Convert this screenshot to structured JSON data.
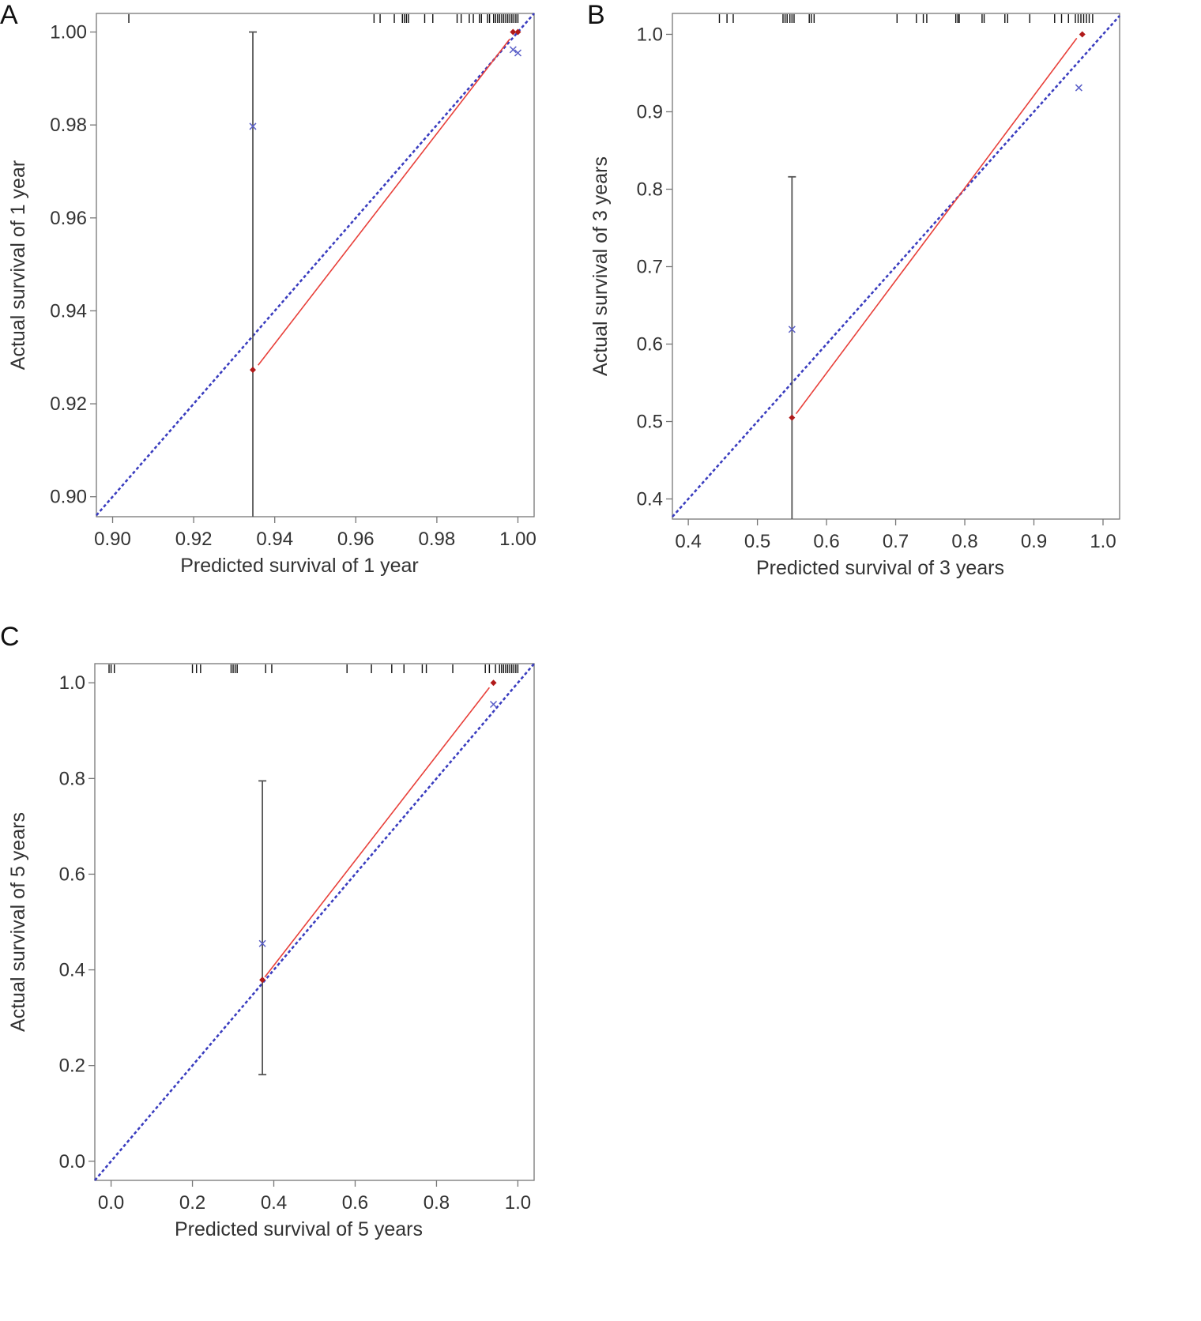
{
  "chart_data": [
    {
      "panel": "A",
      "type": "scatter",
      "xlabel": "Predicted survival of 1 year",
      "ylabel": "Actual survival of 1 year",
      "xlim": [
        0.896,
        1.004
      ],
      "ylim": [
        0.8957,
        1.004
      ],
      "xticks": [
        0.9,
        0.92,
        0.94,
        0.96,
        0.98,
        1.0
      ],
      "yticks": [
        0.9,
        0.92,
        0.94,
        0.96,
        0.98,
        1.0
      ],
      "tick_decimals": 2,
      "apparent": {
        "x": [
          0.9346,
          0.9988,
          1.0
        ],
        "y": [
          0.9273,
          1.0,
          1.0
        ]
      },
      "bias_corrected": {
        "x": [
          0.9346,
          0.9988,
          1.0
        ],
        "y": [
          0.9797,
          0.9962,
          0.9955
        ]
      },
      "error_bars": [
        {
          "x": 0.9346,
          "low": 0.8957,
          "high": 1.0
        }
      ],
      "calibration_line": [
        [
          0.9359,
          0.9283
        ],
        [
          0.998,
          0.9985
        ]
      ],
      "rug": [
        0.904,
        0.9645,
        0.966,
        0.9695,
        0.9715,
        0.972,
        0.9725,
        0.973,
        0.977,
        0.979,
        0.985,
        0.986,
        0.988,
        0.989,
        0.9905,
        0.991,
        0.9925,
        0.993,
        0.994,
        0.9945,
        0.995,
        0.9955,
        0.996,
        0.9965,
        0.997,
        0.9975,
        0.998,
        0.9985,
        0.999,
        0.9995,
        1.0
      ],
      "ideal_line": true,
      "colors": {
        "ideal": "#3a3dbf",
        "apparent": "#b01a1a",
        "line": "#e8403a",
        "bias": "#5a5fc8",
        "errorbar": "#555555",
        "rug": "#111111"
      }
    },
    {
      "panel": "B",
      "type": "scatter",
      "xlabel": "Predicted survival of 3 years",
      "ylabel": "Actual survival of 3 years",
      "xlim": [
        0.377,
        1.024
      ],
      "ylim": [
        0.374,
        1.027
      ],
      "xticks": [
        0.4,
        0.5,
        0.6,
        0.7,
        0.8,
        0.9,
        1.0
      ],
      "yticks": [
        0.4,
        0.5,
        0.6,
        0.7,
        0.8,
        0.9,
        1.0
      ],
      "tick_decimals": 1,
      "apparent": {
        "x": [
          0.55,
          0.97
        ],
        "y": [
          0.505,
          1.0
        ]
      },
      "bias_corrected": {
        "x": [
          0.55,
          0.965
        ],
        "y": [
          0.619,
          0.931
        ]
      },
      "error_bars": [
        {
          "x": 0.55,
          "low": 0.374,
          "high": 0.816
        }
      ],
      "calibration_line": [
        [
          0.556,
          0.51
        ],
        [
          0.962,
          0.995
        ]
      ],
      "rug": [
        0.445,
        0.456,
        0.465,
        0.537,
        0.54,
        0.543,
        0.547,
        0.55,
        0.553,
        0.575,
        0.578,
        0.582,
        0.702,
        0.73,
        0.74,
        0.745,
        0.787,
        0.79,
        0.792,
        0.825,
        0.828,
        0.858,
        0.862,
        0.894,
        0.93,
        0.94,
        0.95,
        0.96,
        0.964,
        0.968,
        0.972,
        0.976,
        0.98,
        0.985
      ],
      "ideal_line": true,
      "colors": {
        "ideal": "#3a3dbf",
        "apparent": "#b01a1a",
        "line": "#e8403a",
        "bias": "#5a5fc8",
        "errorbar": "#555555",
        "rug": "#111111"
      }
    },
    {
      "panel": "C",
      "type": "scatter",
      "xlabel": "Predicted survival of 5 years",
      "ylabel": "Actual survival of 5 years",
      "xlim": [
        -0.04,
        1.04
      ],
      "ylim": [
        -0.04,
        1.04
      ],
      "xticks": [
        0.0,
        0.2,
        0.4,
        0.6,
        0.8,
        1.0
      ],
      "yticks": [
        0.0,
        0.2,
        0.4,
        0.6,
        0.8,
        1.0
      ],
      "tick_decimals": 1,
      "apparent": {
        "x": [
          0.372,
          0.94
        ],
        "y": [
          0.379,
          1.0
        ]
      },
      "bias_corrected": {
        "x": [
          0.372,
          0.94
        ],
        "y": [
          0.455,
          0.955
        ]
      },
      "error_bars": [
        {
          "x": 0.372,
          "low": 0.181,
          "high": 0.795
        }
      ],
      "calibration_line": [
        [
          0.378,
          0.385
        ],
        [
          0.93,
          0.99
        ]
      ],
      "rug": [
        -0.005,
        0.0,
        0.008,
        0.2,
        0.21,
        0.22,
        0.295,
        0.3,
        0.305,
        0.31,
        0.38,
        0.395,
        0.58,
        0.64,
        0.69,
        0.72,
        0.765,
        0.775,
        0.84,
        0.92,
        0.93,
        0.945,
        0.955,
        0.96,
        0.965,
        0.97,
        0.975,
        0.98,
        0.985,
        0.99,
        0.995,
        1.0
      ],
      "ideal_line": true,
      "colors": {
        "ideal": "#3a3dbf",
        "apparent": "#b01a1a",
        "line": "#e8403a",
        "bias": "#5a5fc8",
        "errorbar": "#555555",
        "rug": "#111111"
      }
    }
  ],
  "panels": {
    "a": "A",
    "b": "B",
    "c": "C"
  }
}
